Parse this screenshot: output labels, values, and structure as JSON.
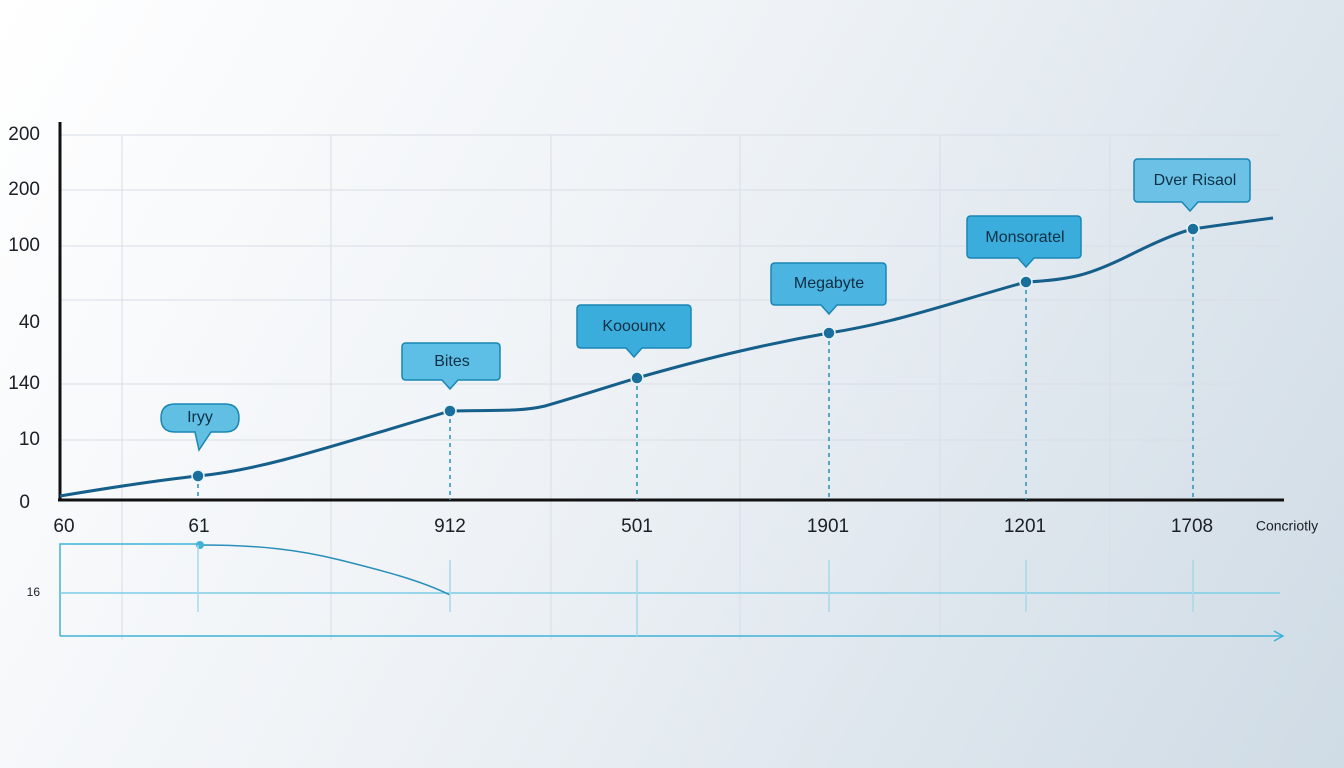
{
  "y_axis_labels": [
    "200",
    "200",
    "100",
    "40",
    "140",
    "10",
    "0"
  ],
  "x_axis_labels": [
    "60",
    "61",
    "912",
    "501",
    "1901",
    "1201",
    "1708"
  ],
  "x_axis_title": "Concriotly",
  "callouts": [
    "Iryy",
    "Bites",
    "Kooounx",
    "Megabyte",
    "Monsoratel",
    "Dver Risaol"
  ],
  "lower_panel": {
    "y_label": "16"
  }
}
